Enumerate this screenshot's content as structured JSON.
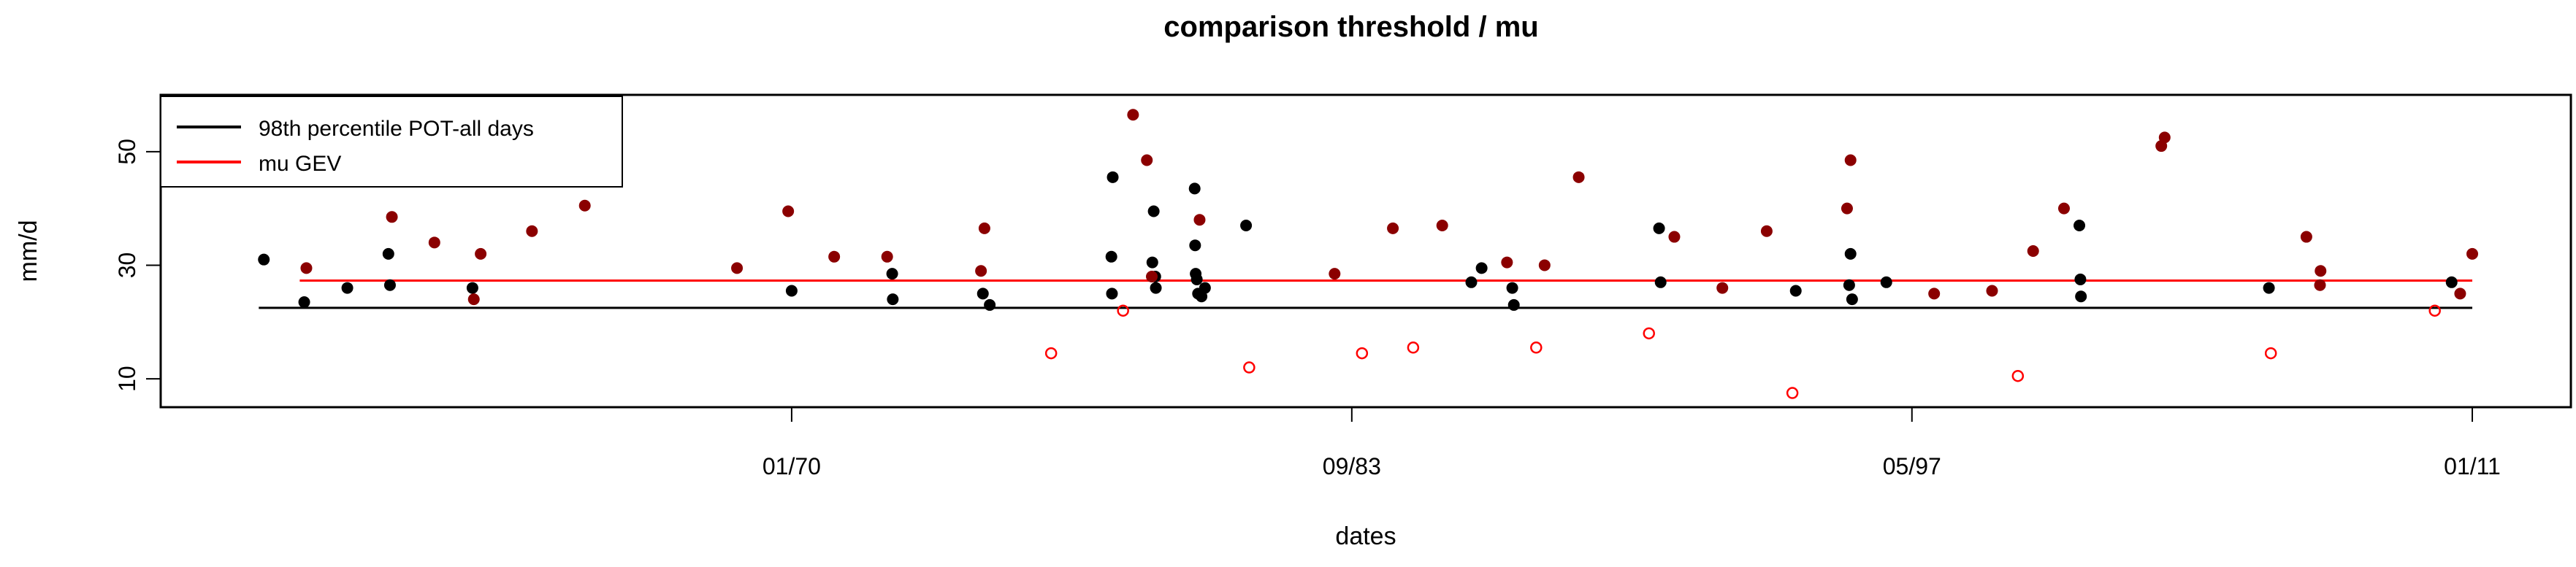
{
  "chart_data": {
    "type": "scatter",
    "title": "comparison threshold / mu",
    "xlabel": "dates",
    "ylabel": "mm/d",
    "xlim": [
      "1955-01-01",
      "2011-01-01"
    ],
    "ylim": [
      5,
      60
    ],
    "x_ticks": [
      {
        "date": "1970-01-01",
        "label": "01/70"
      },
      {
        "date": "1983-09-01",
        "label": "09/83"
      },
      {
        "date": "1997-05-01",
        "label": "05/97"
      },
      {
        "date": "2011-01-01",
        "label": "01/11"
      }
    ],
    "y_ticks": [
      10,
      30,
      50
    ],
    "legend": {
      "position": "top-left",
      "entries": [
        {
          "label": "98th percentile POT-all days",
          "color": "#000000"
        },
        {
          "label": "mu GEV",
          "color": "#ff0000"
        }
      ]
    },
    "lines": [
      {
        "name": "98th percentile POT-all days",
        "color": "#000000",
        "y": 22.5,
        "x_range": [
          "1957-01-01",
          "2011-01-01"
        ]
      },
      {
        "name": "mu GEV",
        "color": "#ff0000",
        "y": 27.3,
        "x_range": [
          "1958-01-01",
          "2011-01-01"
        ]
      }
    ],
    "series": [
      {
        "marker": "filled black",
        "color": "#000000",
        "points": [
          [
            "1957-02-15",
            31.0
          ],
          [
            "1958-02-10",
            23.5
          ],
          [
            "1959-03-01",
            26.0
          ],
          [
            "1960-03-01",
            32.0
          ],
          [
            "1960-03-15",
            26.5
          ],
          [
            "1962-03-20",
            26.0
          ],
          [
            "1970-01-01",
            25.5
          ],
          [
            "1972-06-15",
            28.5
          ],
          [
            "1972-06-20",
            24.0
          ],
          [
            "1974-09-01",
            25.0
          ],
          [
            "1974-11-01",
            23.0
          ],
          [
            "1977-11-01",
            45.5
          ],
          [
            "1977-10-20",
            31.5
          ],
          [
            "1977-10-25",
            25.0
          ],
          [
            "1978-11-01",
            39.5
          ],
          [
            "1978-10-20",
            30.5
          ],
          [
            "1978-11-15",
            28.0
          ],
          [
            "1978-11-20",
            26.0
          ],
          [
            "1979-11-01",
            43.5
          ],
          [
            "1979-11-05",
            33.5
          ],
          [
            "1979-11-10",
            28.5
          ],
          [
            "1979-11-20",
            27.5
          ],
          [
            "1979-12-01",
            25.0
          ],
          [
            "1980-01-01",
            24.5
          ],
          [
            "1980-02-01",
            26.0
          ],
          [
            "1981-02-01",
            37.0
          ],
          [
            "1986-11-01",
            29.5
          ],
          [
            "1986-08-01",
            27.0
          ],
          [
            "1987-08-01",
            26.0
          ],
          [
            "1987-08-15",
            23.0
          ],
          [
            "1991-03-01",
            36.5
          ],
          [
            "1991-03-15",
            27.0
          ],
          [
            "1994-07-01",
            25.5
          ],
          [
            "1995-11-01",
            32.0
          ],
          [
            "1995-10-20",
            26.5
          ],
          [
            "1995-11-15",
            24.0
          ],
          [
            "1996-09-15",
            27.0
          ],
          [
            "2001-06-01",
            37.0
          ],
          [
            "2001-06-10",
            27.5
          ],
          [
            "2001-06-15",
            24.5
          ],
          [
            "2006-01-15",
            26.0
          ],
          [
            "2010-07-01",
            27.0
          ]
        ]
      },
      {
        "marker": "filled dark red",
        "color": "#8b0000",
        "points": [
          [
            "1958-03-01",
            29.5
          ],
          [
            "1960-04-01",
            38.5
          ],
          [
            "1961-04-15",
            34.0
          ],
          [
            "1962-04-01",
            24.0
          ],
          [
            "1962-06-01",
            32.0
          ],
          [
            "1963-09-01",
            36.0
          ],
          [
            "1964-12-15",
            40.5
          ],
          [
            "1968-09-01",
            29.5
          ],
          [
            "1969-12-01",
            39.5
          ],
          [
            "1971-01-15",
            31.5
          ],
          [
            "1972-05-01",
            31.5
          ],
          [
            "1974-08-15",
            29.0
          ],
          [
            "1974-09-15",
            36.5
          ],
          [
            "1978-05-01",
            56.5
          ],
          [
            "1978-09-01",
            48.5
          ],
          [
            "1978-10-15",
            28.0
          ],
          [
            "1979-12-15",
            38.0
          ],
          [
            "1983-04-01",
            28.5
          ],
          [
            "1984-09-01",
            36.5
          ],
          [
            "1985-11-15",
            37.0
          ],
          [
            "1987-06-15",
            30.5
          ],
          [
            "1988-05-15",
            30.0
          ],
          [
            "1989-03-15",
            45.5
          ],
          [
            "1991-07-15",
            35.0
          ],
          [
            "1992-09-15",
            26.0
          ],
          [
            "1993-10-15",
            36.0
          ],
          [
            "1995-11-01",
            48.5
          ],
          [
            "1995-10-01",
            40.0
          ],
          [
            "1997-11-15",
            25.0
          ],
          [
            "1999-04-15",
            25.5
          ],
          [
            "2000-04-15",
            32.5
          ],
          [
            "2001-01-15",
            40.0
          ],
          [
            "2003-06-01",
            51.0
          ],
          [
            "2003-07-01",
            52.5
          ],
          [
            "2006-12-15",
            35.0
          ],
          [
            "2007-04-15",
            26.5
          ],
          [
            "2007-04-20",
            29.0
          ],
          [
            "2010-09-15",
            25.0
          ],
          [
            "2011-01-01",
            32.0
          ]
        ]
      },
      {
        "marker": "open red circle",
        "color": "#ff0000",
        "points": [
          [
            "1976-05-01",
            14.5
          ],
          [
            "1978-02-01",
            22.0
          ],
          [
            "1981-03-01",
            12.0
          ],
          [
            "1983-12-01",
            14.5
          ],
          [
            "1985-03-01",
            15.5
          ],
          [
            "1988-03-01",
            15.5
          ],
          [
            "1990-12-01",
            18.0
          ],
          [
            "1994-06-01",
            7.5
          ],
          [
            "1999-12-01",
            10.5
          ],
          [
            "2006-02-01",
            14.5
          ],
          [
            "2010-02-01",
            22.0
          ]
        ]
      }
    ]
  }
}
